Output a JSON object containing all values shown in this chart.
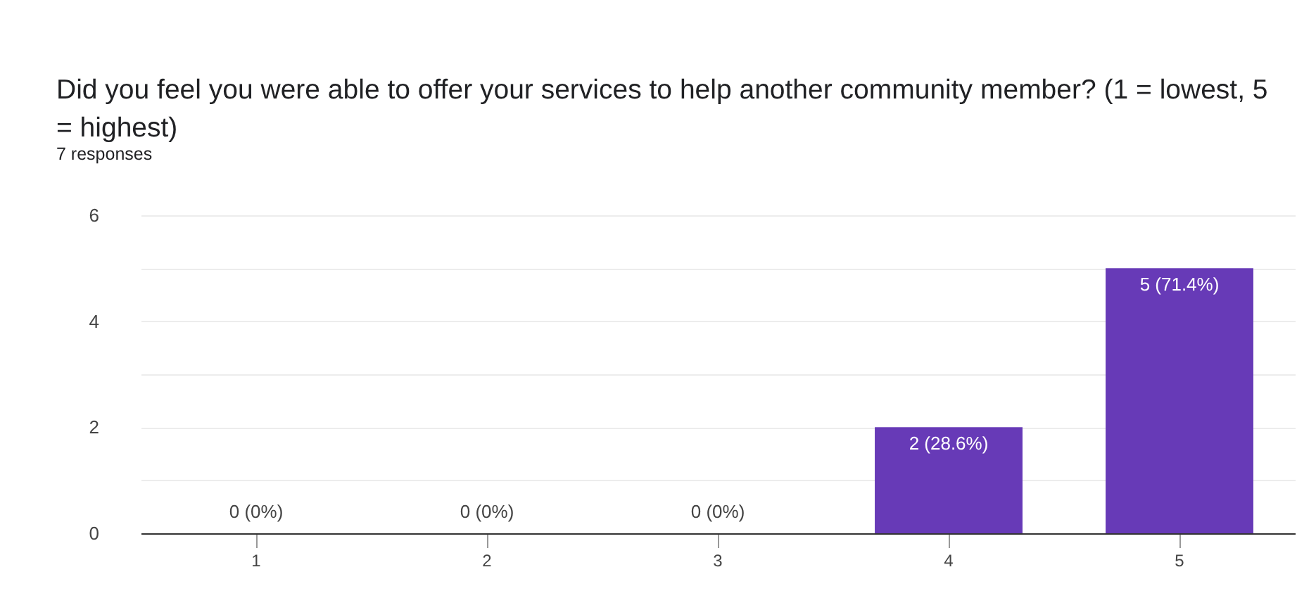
{
  "chart_data": {
    "type": "bar",
    "title": "Did you feel you were able to offer your services to help another community member? (1 = lowest, 5 = highest)",
    "subtitle": "7 responses",
    "categories": [
      "1",
      "2",
      "3",
      "4",
      "5"
    ],
    "values": [
      0,
      0,
      0,
      2,
      5
    ],
    "color": "#673ab7",
    "value_labels": [
      "0 (0%)",
      "0 (0%)",
      "0 (0%)",
      "2 (28.6%)",
      "5 (71.4%)"
    ],
    "ylim": [
      0,
      6
    ],
    "yticks": [
      0,
      {
        "value": 1,
        "label": null
      },
      2,
      {
        "value": 3,
        "label": null
      },
      4,
      {
        "value": 5,
        "label": null
      },
      6
    ],
    "grid": "y"
  }
}
